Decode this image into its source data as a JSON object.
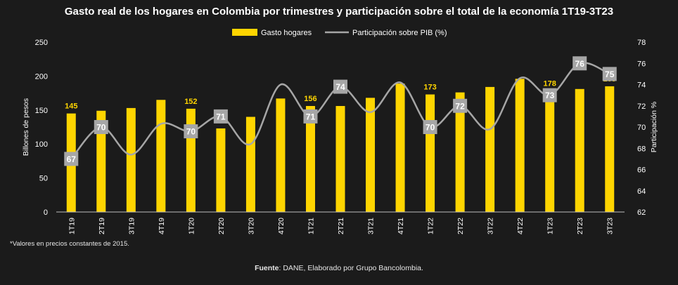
{
  "title": "Gasto real de los hogares en Colombia por trimestres y participación sobre el total de la economía 1T19-3T23",
  "footnote": "*Valores en precios constantes de 2015.",
  "source_label": "Fuente",
  "source_text": ": DANE, Elaborado por Grupo Bancolombia.",
  "colors": {
    "background": "#1b1b1b",
    "bar": "#ffd500",
    "line": "#a6a6a6",
    "badge": "#a6a6a6",
    "text": "#ffffff",
    "grid": "#3a3a3a"
  },
  "chart_data": {
    "type": "bar",
    "categories": [
      "1T19",
      "2T19",
      "3T19",
      "4T19",
      "1T20",
      "2T20",
      "3T20",
      "4T20",
      "1T21",
      "2T21",
      "3T21",
      "4T21",
      "1T22",
      "2T22",
      "3T22",
      "4T22",
      "1T23",
      "2T23",
      "3T23"
    ],
    "series": [
      {
        "name": "Gasto hogares",
        "type": "bar",
        "axis": "left",
        "values": [
          145,
          149,
          153,
          165,
          152,
          123,
          140,
          167,
          156,
          156,
          168,
          189,
          173,
          176,
          184,
          196,
          178,
          181,
          185
        ],
        "data_labels": [
          "145",
          "",
          "",
          "",
          "152",
          "",
          "",
          "",
          "156",
          "",
          "",
          "",
          "173",
          "",
          "",
          "",
          "178",
          "",
          "185"
        ]
      },
      {
        "name": "Participación sobre PIB (%)",
        "type": "line",
        "axis": "right",
        "values": [
          67,
          70,
          67.4,
          70.3,
          69.6,
          71,
          68.4,
          74,
          71,
          73.8,
          71.4,
          74.2,
          70,
          72,
          69.8,
          74.6,
          73,
          76,
          75
        ],
        "data_labels": [
          "67",
          "70",
          "",
          "",
          "70",
          "71",
          "",
          "",
          "71",
          "74",
          "",
          "",
          "70",
          "72",
          "",
          "",
          "73",
          "76",
          "75"
        ]
      }
    ],
    "ylabel": "Billones de pesos",
    "y2label": "Participación %",
    "ylim": [
      0,
      250
    ],
    "y2lim": [
      62,
      78
    ],
    "yticks": [
      "0",
      "50",
      "100",
      "150",
      "200",
      "250"
    ],
    "y2ticks": [
      "62",
      "64",
      "66",
      "68",
      "70",
      "72",
      "74",
      "76",
      "78"
    ],
    "legend_position": "top-right"
  }
}
